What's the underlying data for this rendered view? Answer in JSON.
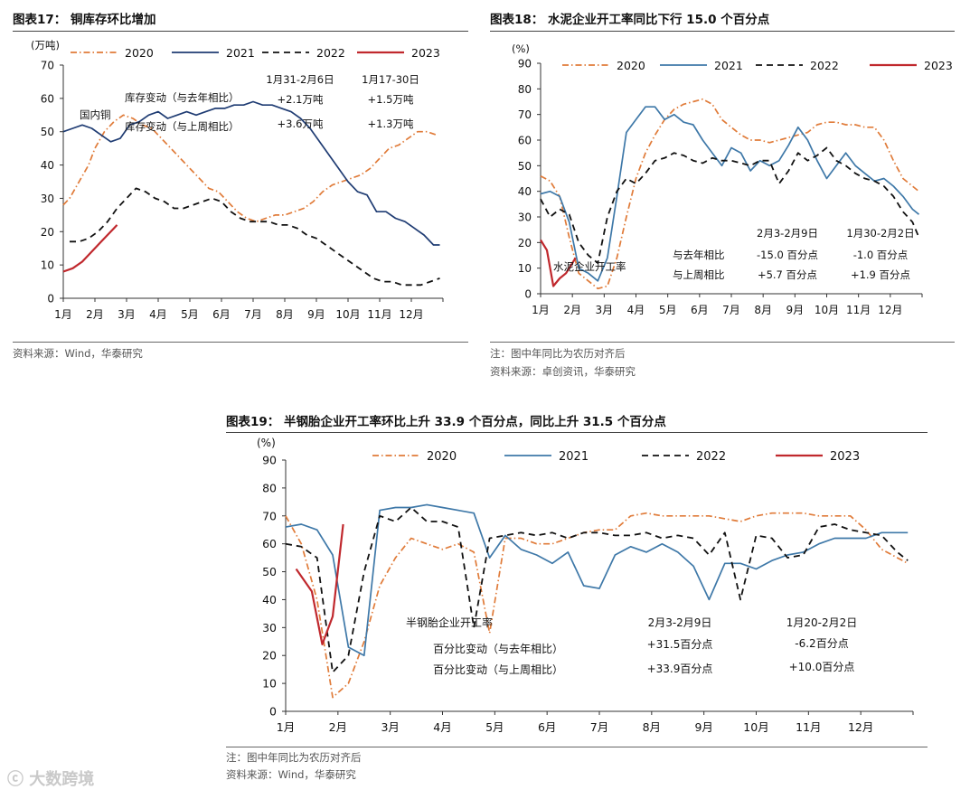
{
  "colors": {
    "s2020": "#E07B39",
    "s2021": "#1F3C73",
    "s2021b": "#3E78A8",
    "s2022": "#111111",
    "s2023": "#C0282D"
  },
  "months": [
    "1月",
    "2月",
    "3月",
    "4月",
    "5月",
    "6月",
    "7月",
    "8月",
    "9月",
    "10月",
    "11月",
    "12月"
  ],
  "fig17": {
    "title": "图表17：   铜库存环比增加",
    "source": "资料来源：Wind，华泰研究"
  },
  "fig18": {
    "title": "图表18：   水泥企业开工率同比下行 15.0 个百分点",
    "note": "注：图中年同比为农历对齐后",
    "source": "资料来源：卓创资讯，华泰研究"
  },
  "fig19": {
    "title": "图表19：   半钢胎企业开工率环比上升 33.9 个百分点，同比上升 31.5 个百分点",
    "note": "注：图中年同比为农历对齐后",
    "source": "资料来源：Wind，华泰研究"
  },
  "watermark": "大数跨境",
  "chart_data": [
    {
      "id": "fig17",
      "type": "line",
      "title": "铜库存环比增加",
      "ylabel": "(万吨)",
      "ylim": [
        0,
        70
      ],
      "yticks": [
        0,
        10,
        20,
        30,
        40,
        50,
        60,
        70
      ],
      "categories": [
        "1月",
        "2月",
        "3月",
        "4月",
        "5月",
        "6月",
        "7月",
        "8月",
        "9月",
        "10月",
        "11月",
        "12月"
      ],
      "legend": [
        "2020",
        "2021",
        "2022",
        "2023"
      ],
      "annotations": [
        {
          "text": "国内铜"
        },
        {
          "text": "库存变动（与去年相比）"
        },
        {
          "text": "库存变动（与上周相比）"
        },
        {
          "text": "1月31-2月6日"
        },
        {
          "text": "+2.1万吨"
        },
        {
          "text": "+3.6万吨"
        },
        {
          "text": "1月17-30日"
        },
        {
          "text": "+1.5万吨"
        },
        {
          "text": "+1.3万吨"
        }
      ],
      "series": [
        {
          "name": "2020",
          "style": "dashdot",
          "x": [
            0,
            0.2,
            0.5,
            0.8,
            1.0,
            1.3,
            1.6,
            1.9,
            2.2,
            2.5,
            2.8,
            3.1,
            3.4,
            3.7,
            4.0,
            4.3,
            4.6,
            4.9,
            5.2,
            5.5,
            5.8,
            6.1,
            6.4,
            6.7,
            7.0,
            7.3,
            7.6,
            7.9,
            8.2,
            8.5,
            8.8,
            9.1,
            9.4,
            9.7,
            10.0,
            10.3,
            10.6,
            10.9,
            11.2,
            11.5,
            11.8
          ],
          "values": [
            28,
            30,
            35,
            40,
            45,
            50,
            53,
            55,
            54,
            52,
            51,
            48,
            45,
            42,
            39,
            36,
            33,
            32,
            29,
            26,
            24,
            23,
            24,
            25,
            25,
            26,
            27,
            29,
            32,
            34,
            35,
            36,
            37,
            39,
            42,
            45,
            46,
            48,
            50,
            50,
            49
          ]
        },
        {
          "name": "2021",
          "style": "solid",
          "x": [
            0,
            0.3,
            0.6,
            0.9,
            1.2,
            1.5,
            1.8,
            2.1,
            2.4,
            2.7,
            3.0,
            3.3,
            3.6,
            3.9,
            4.2,
            4.5,
            4.8,
            5.1,
            5.4,
            5.7,
            6.0,
            6.3,
            6.6,
            6.9,
            7.2,
            7.5,
            7.8,
            8.1,
            8.4,
            8.7,
            9.0,
            9.3,
            9.6,
            9.9,
            10.2,
            10.5,
            10.8,
            11.1,
            11.4,
            11.7,
            11.9
          ],
          "values": [
            50,
            51,
            52,
            51,
            49,
            47,
            48,
            52,
            53,
            55,
            56,
            54,
            55,
            56,
            55,
            56,
            57,
            57,
            58,
            58,
            59,
            58,
            58,
            57,
            56,
            54,
            51,
            47,
            43,
            39,
            35,
            32,
            31,
            26,
            26,
            24,
            23,
            21,
            19,
            16,
            16
          ]
        },
        {
          "name": "2022",
          "style": "dash",
          "x": [
            0.2,
            0.5,
            0.8,
            1.1,
            1.4,
            1.7,
            2.0,
            2.3,
            2.6,
            2.9,
            3.2,
            3.5,
            3.8,
            4.1,
            4.4,
            4.7,
            5.0,
            5.3,
            5.6,
            5.9,
            6.2,
            6.5,
            6.8,
            7.1,
            7.4,
            7.7,
            8.0,
            8.3,
            8.6,
            8.9,
            9.2,
            9.5,
            9.8,
            10.1,
            10.4,
            10.7,
            11.0,
            11.3,
            11.6,
            11.9
          ],
          "values": [
            17,
            17,
            18,
            20,
            23,
            27,
            30,
            33,
            32,
            30,
            29,
            27,
            27,
            28,
            29,
            30,
            29,
            26,
            24,
            23,
            23,
            23,
            22,
            22,
            21,
            19,
            18,
            16,
            14,
            12,
            10,
            8,
            6,
            5,
            5,
            4,
            4,
            4,
            5,
            6
          ]
        },
        {
          "name": "2023",
          "style": "solid",
          "x": [
            0,
            0.3,
            0.6,
            0.9,
            1.2,
            1.5,
            1.7
          ],
          "values": [
            8,
            9,
            11,
            14,
            17,
            20,
            22
          ]
        }
      ]
    },
    {
      "id": "fig18",
      "type": "line",
      "title": "水泥企业开工率同比下行 15.0 个百分点",
      "ylabel": "(%)",
      "ylim": [
        0,
        90
      ],
      "yticks": [
        0,
        10,
        20,
        30,
        40,
        50,
        60,
        70,
        80,
        90
      ],
      "categories": [
        "1月",
        "2月",
        "3月",
        "4月",
        "5月",
        "6月",
        "7月",
        "8月",
        "9月",
        "10月",
        "11月",
        "12月"
      ],
      "legend": [
        "2020",
        "2021",
        "2022",
        "2023"
      ],
      "annotations": [
        {
          "text": "2月3-2月9日"
        },
        {
          "text": "1月30-2月2日"
        },
        {
          "text": "与去年相比"
        },
        {
          "text": "-15.0 百分点"
        },
        {
          "text": "-1.0 百分点"
        },
        {
          "text": "与上周相比"
        },
        {
          "text": "+5.7 百分点"
        },
        {
          "text": "+1.9 百分点"
        },
        {
          "text": "水泥企业开工率"
        }
      ],
      "series": [
        {
          "name": "2020",
          "style": "dashdot",
          "x": [
            0,
            0.3,
            0.6,
            0.9,
            1.2,
            1.5,
            1.8,
            2.1,
            2.4,
            2.7,
            3.0,
            3.3,
            3.6,
            3.9,
            4.2,
            4.5,
            4.8,
            5.1,
            5.4,
            5.7,
            6.0,
            6.3,
            6.6,
            6.9,
            7.2,
            7.5,
            7.8,
            8.1,
            8.4,
            8.7,
            9.0,
            9.3,
            9.6,
            9.9,
            10.2,
            10.5,
            10.8,
            11.1,
            11.4,
            11.7,
            11.9
          ],
          "values": [
            46,
            44,
            38,
            22,
            8,
            5,
            2,
            3,
            14,
            30,
            45,
            55,
            62,
            68,
            72,
            74,
            75,
            76,
            74,
            68,
            65,
            62,
            60,
            60,
            59,
            60,
            61,
            62,
            63,
            66,
            67,
            67,
            66,
            66,
            65,
            65,
            60,
            52,
            45,
            42,
            40
          ]
        },
        {
          "name": "2021",
          "style": "solid",
          "x": [
            0,
            0.3,
            0.6,
            0.9,
            1.2,
            1.5,
            1.8,
            2.1,
            2.4,
            2.7,
            3.0,
            3.3,
            3.6,
            3.9,
            4.2,
            4.5,
            4.8,
            5.1,
            5.4,
            5.7,
            6.0,
            6.3,
            6.6,
            6.9,
            7.2,
            7.5,
            7.8,
            8.1,
            8.4,
            8.7,
            9.0,
            9.3,
            9.6,
            9.9,
            10.2,
            10.5,
            10.8,
            11.1,
            11.4,
            11.7,
            11.9
          ],
          "values": [
            39,
            40,
            38,
            28,
            10,
            8,
            5,
            14,
            38,
            63,
            68,
            73,
            73,
            68,
            70,
            67,
            66,
            60,
            55,
            50,
            57,
            55,
            48,
            52,
            50,
            52,
            58,
            65,
            60,
            52,
            45,
            50,
            55,
            50,
            47,
            44,
            45,
            42,
            38,
            33,
            31
          ]
        },
        {
          "name": "2022",
          "style": "dash",
          "x": [
            0,
            0.3,
            0.6,
            0.9,
            1.2,
            1.5,
            1.8,
            2.1,
            2.4,
            2.7,
            3.0,
            3.3,
            3.6,
            3.9,
            4.2,
            4.5,
            4.8,
            5.1,
            5.4,
            5.7,
            6.0,
            6.3,
            6.6,
            6.9,
            7.2,
            7.5,
            7.8,
            8.1,
            8.4,
            8.7,
            9.0,
            9.3,
            9.6,
            9.9,
            10.2,
            10.5,
            10.8,
            11.1,
            11.4,
            11.7,
            11.9
          ],
          "values": [
            37,
            30,
            33,
            31,
            20,
            15,
            12,
            30,
            40,
            45,
            43,
            47,
            52,
            53,
            55,
            54,
            52,
            51,
            53,
            52,
            52,
            51,
            50,
            52,
            52,
            43,
            48,
            55,
            52,
            54,
            57,
            52,
            50,
            47,
            45,
            44,
            42,
            38,
            32,
            28,
            22
          ]
        },
        {
          "name": "2023",
          "style": "solid",
          "x": [
            0,
            0.2,
            0.4,
            0.6,
            0.8,
            1.0,
            1.1
          ],
          "values": [
            21,
            17,
            3,
            6,
            8,
            12,
            14
          ]
        }
      ]
    },
    {
      "id": "fig19",
      "type": "line",
      "title": "半钢胎企业开工率环比上升 33.9 个百分点，同比上升 31.5 个百分点",
      "ylabel": "(%)",
      "ylim": [
        0,
        90
      ],
      "yticks": [
        0,
        10,
        20,
        30,
        40,
        50,
        60,
        70,
        80,
        90
      ],
      "categories": [
        "1月",
        "2月",
        "3月",
        "4月",
        "5月",
        "6月",
        "7月",
        "8月",
        "9月",
        "10月",
        "11月",
        "12月"
      ],
      "legend": [
        "2020",
        "2021",
        "2022",
        "2023"
      ],
      "annotations": [
        {
          "text": "半钢胎企业开工率"
        },
        {
          "text": "2月3-2月9日"
        },
        {
          "text": "1月20-2月2日"
        },
        {
          "text": "百分比变动（与去年相比）"
        },
        {
          "text": "+31.5百分点"
        },
        {
          "text": "-6.2百分点"
        },
        {
          "text": "百分比变动（与上周相比）"
        },
        {
          "text": "+33.9百分点"
        },
        {
          "text": "+10.0百分点"
        }
      ],
      "series": [
        {
          "name": "2020",
          "style": "dashdot",
          "x": [
            0,
            0.3,
            0.6,
            0.9,
            1.2,
            1.5,
            1.8,
            2.1,
            2.4,
            2.7,
            3.0,
            3.3,
            3.6,
            3.9,
            4.2,
            4.5,
            4.8,
            5.1,
            5.4,
            5.7,
            6.0,
            6.3,
            6.6,
            6.9,
            7.2,
            7.5,
            7.8,
            8.1,
            8.4,
            8.7,
            9.0,
            9.3,
            9.6,
            9.9,
            10.2,
            10.5,
            10.8,
            11.1,
            11.4,
            11.7,
            11.9
          ],
          "values": [
            70,
            60,
            40,
            5,
            10,
            25,
            45,
            55,
            62,
            60,
            58,
            60,
            57,
            28,
            62,
            62,
            60,
            60,
            62,
            64,
            65,
            65,
            70,
            71,
            70,
            70,
            70,
            70,
            69,
            68,
            70,
            71,
            71,
            71,
            70,
            70,
            70,
            65,
            58,
            55,
            53
          ]
        },
        {
          "name": "2021",
          "style": "solid",
          "x": [
            0,
            0.3,
            0.6,
            0.9,
            1.2,
            1.5,
            1.8,
            2.1,
            2.4,
            2.7,
            3.0,
            3.3,
            3.6,
            3.9,
            4.2,
            4.5,
            4.8,
            5.1,
            5.4,
            5.7,
            6.0,
            6.3,
            6.6,
            6.9,
            7.2,
            7.5,
            7.8,
            8.1,
            8.4,
            8.7,
            9.0,
            9.3,
            9.6,
            9.9,
            10.2,
            10.5,
            10.8,
            11.1,
            11.4,
            11.7,
            11.9
          ],
          "values": [
            66,
            67,
            65,
            56,
            23,
            20,
            72,
            73,
            73,
            74,
            73,
            72,
            71,
            55,
            63,
            58,
            56,
            53,
            57,
            45,
            44,
            56,
            59,
            57,
            60,
            57,
            52,
            40,
            53,
            53,
            51,
            54,
            56,
            57,
            60,
            62,
            62,
            62,
            64,
            64,
            64
          ]
        },
        {
          "name": "2022",
          "style": "dash",
          "x": [
            0,
            0.3,
            0.6,
            0.9,
            1.2,
            1.5,
            1.8,
            2.1,
            2.4,
            2.7,
            3.0,
            3.3,
            3.6,
            3.9,
            4.2,
            4.5,
            4.8,
            5.1,
            5.4,
            5.7,
            6.0,
            6.3,
            6.6,
            6.9,
            7.2,
            7.5,
            7.8,
            8.1,
            8.4,
            8.7,
            9.0,
            9.3,
            9.6,
            9.9,
            10.2,
            10.5,
            10.8,
            11.1,
            11.4,
            11.7,
            11.9
          ],
          "values": [
            60,
            59,
            55,
            14,
            20,
            50,
            70,
            68,
            73,
            68,
            68,
            66,
            30,
            62,
            63,
            64,
            63,
            64,
            62,
            64,
            64,
            63,
            63,
            64,
            62,
            63,
            62,
            56,
            64,
            40,
            63,
            62,
            55,
            56,
            66,
            67,
            65,
            64,
            63,
            57,
            54
          ]
        },
        {
          "name": "2023",
          "style": "solid",
          "x": [
            0.2,
            0.5,
            0.7,
            0.9,
            1.1
          ],
          "values": [
            51,
            43,
            24,
            34,
            67
          ]
        }
      ]
    }
  ]
}
